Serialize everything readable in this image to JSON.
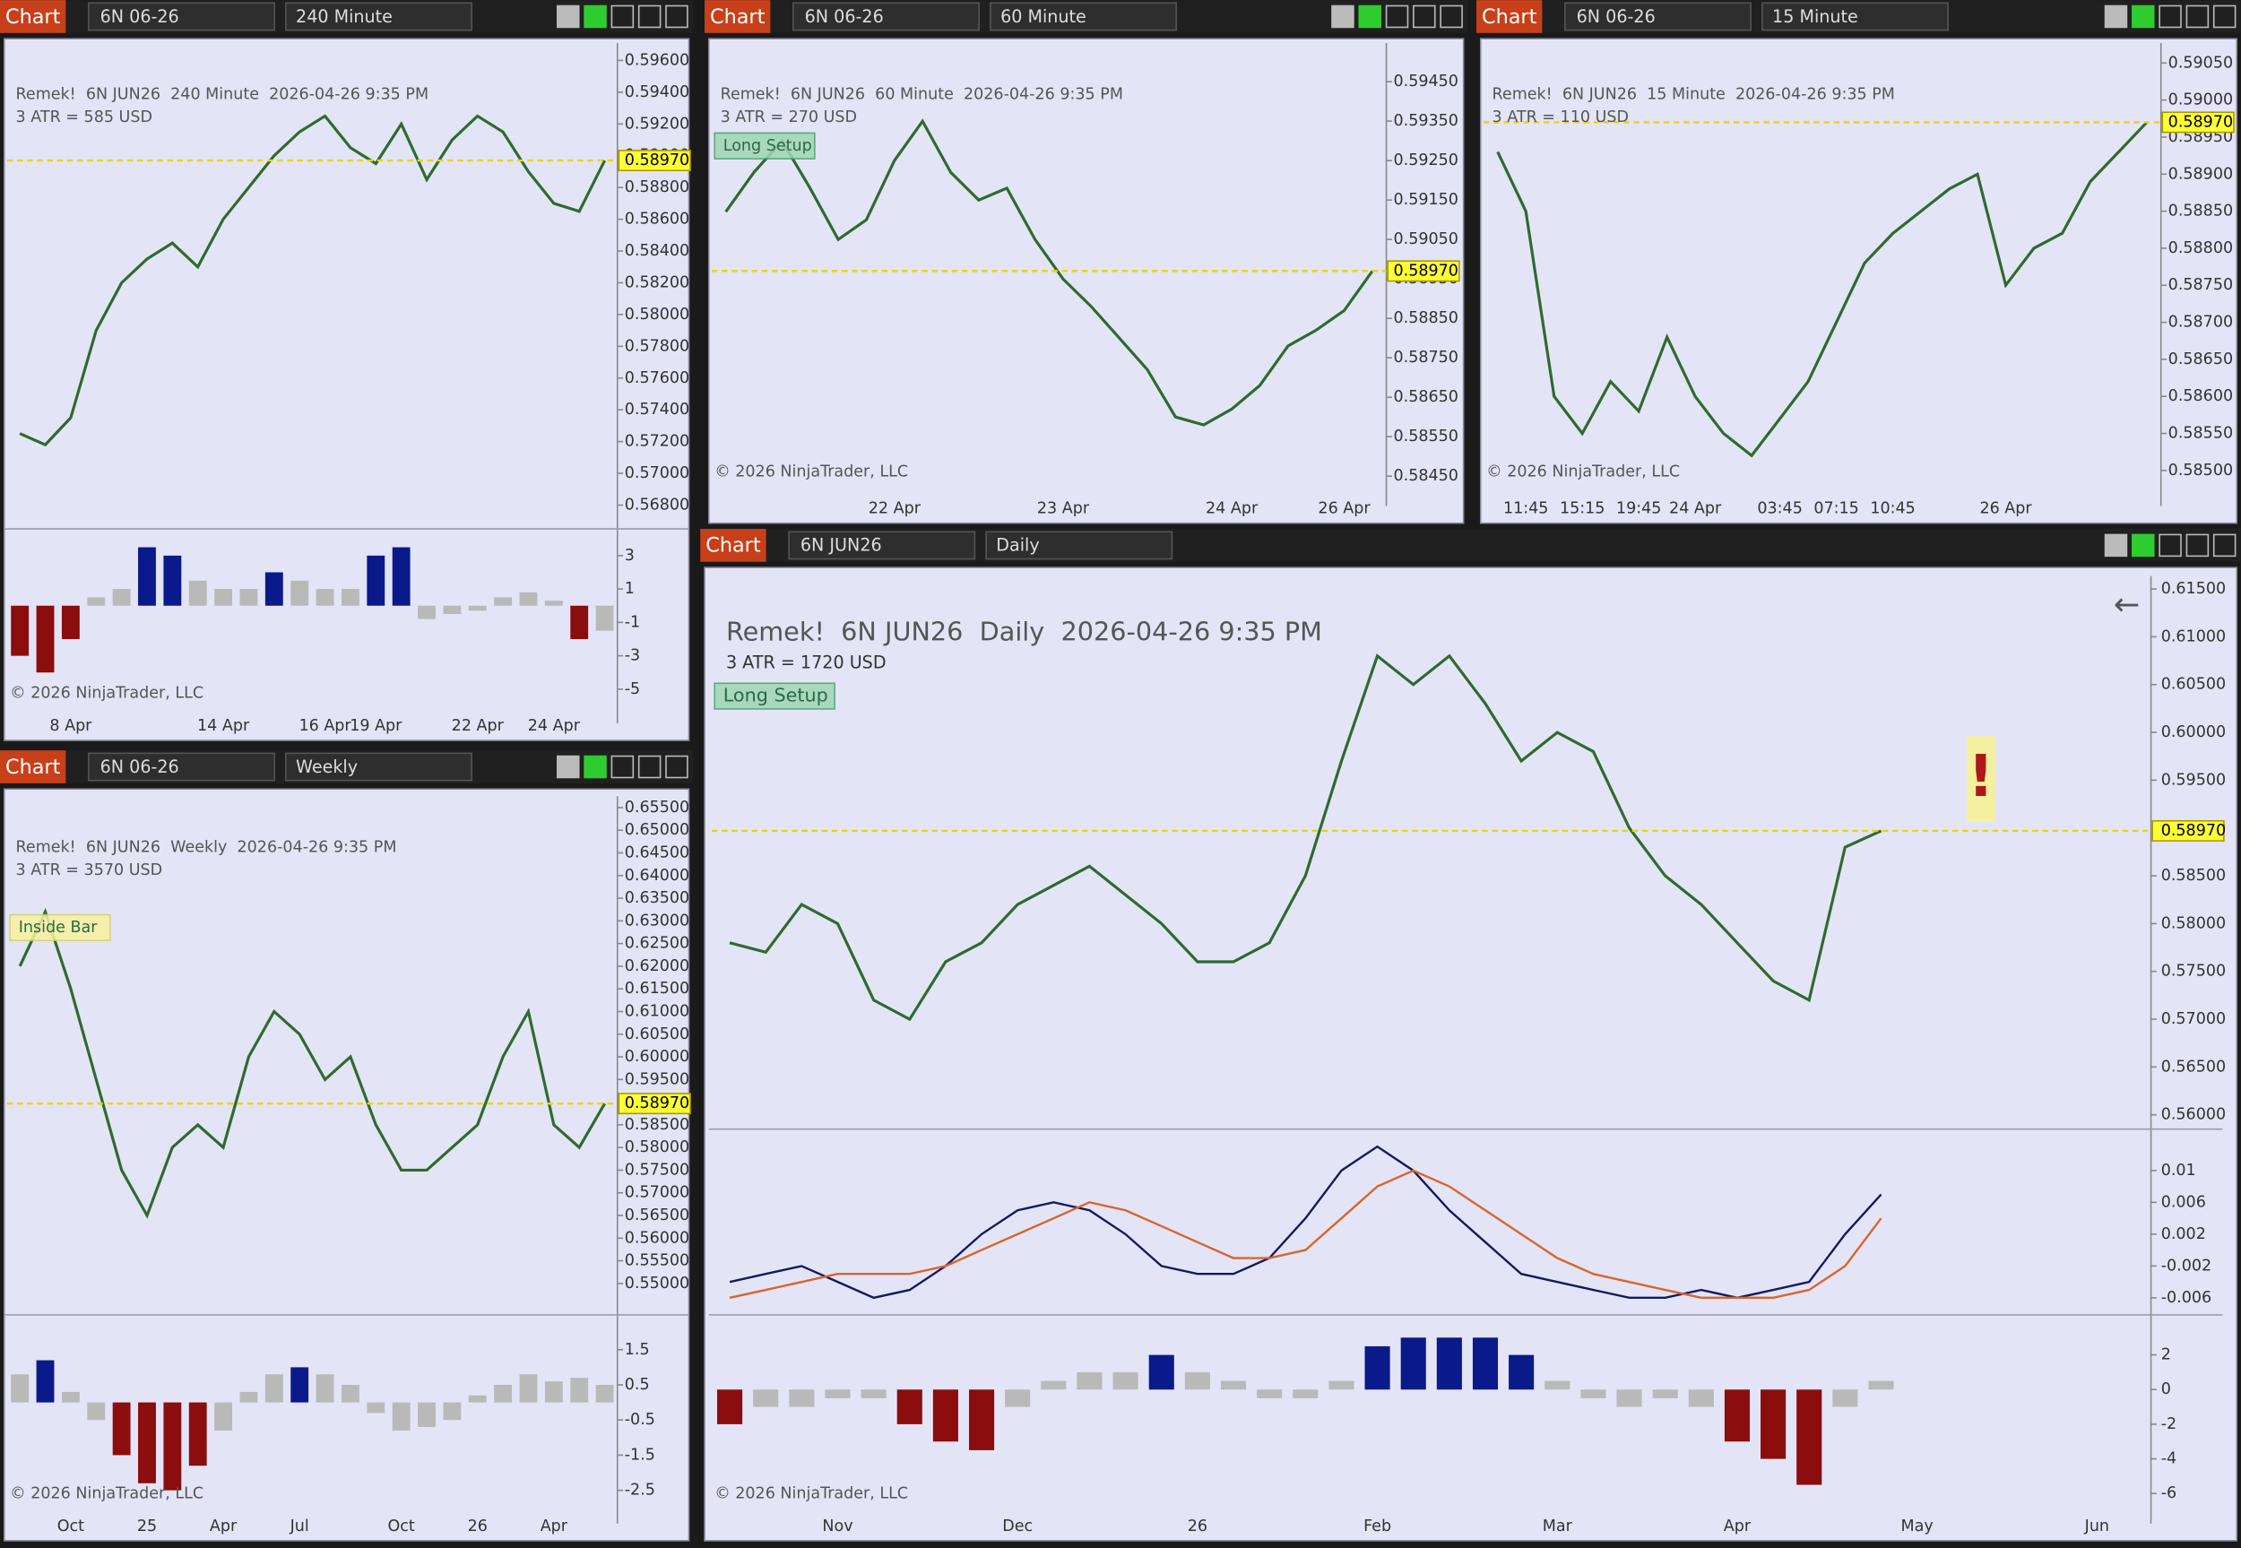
{
  "chart_data": [
    {
      "type": "line",
      "tab": "Chart",
      "instrument": "6N 06-26",
      "interval": "240 Minute",
      "title": "Remek!  6N JUN26  240 Minute  2026-04-26 9:35 PM",
      "subtitle": "3 ATR = 585 USD",
      "copyright": "© 2026 NinjaTrader, LLC",
      "color": "#2e6b2e",
      "categories": [
        null,
        null,
        "8 Apr",
        null,
        null,
        null,
        null,
        null,
        "14 Apr",
        null,
        null,
        null,
        "16 Apr",
        null,
        "19 Apr",
        null,
        null,
        null,
        "22 Apr",
        null,
        null,
        "24 Apr",
        null,
        null
      ],
      "values": [
        0.5725,
        0.5718,
        0.5735,
        0.579,
        0.582,
        0.5835,
        0.5845,
        0.583,
        0.586,
        0.588,
        0.59,
        0.5915,
        0.5925,
        0.5905,
        0.5895,
        0.592,
        0.5885,
        0.591,
        0.5925,
        0.5915,
        0.589,
        0.587,
        0.5865,
        0.5897
      ],
      "last": {
        "value": 0.5897,
        "label": "0.58970"
      },
      "ylim": [
        0.5665,
        0.5971
      ],
      "yticks": [
        {
          "value": 0.596,
          "label": "0.59600"
        },
        {
          "value": 0.594,
          "label": "0.59400"
        },
        {
          "value": 0.592,
          "label": "0.59200"
        },
        {
          "value": 0.59,
          "label": "0.59000"
        },
        {
          "value": 0.588,
          "label": "0.58800"
        },
        {
          "value": 0.586,
          "label": "0.58600"
        },
        {
          "value": 0.584,
          "label": "0.58400"
        },
        {
          "value": 0.582,
          "label": "0.58200"
        },
        {
          "value": 0.58,
          "label": "0.58000"
        },
        {
          "value": 0.578,
          "label": "0.57800"
        },
        {
          "value": 0.576,
          "label": "0.57600"
        },
        {
          "value": 0.574,
          "label": "0.57400"
        },
        {
          "value": 0.572,
          "label": "0.57200"
        },
        {
          "value": 0.57,
          "label": "0.57000"
        },
        {
          "value": 0.568,
          "label": "0.56800"
        }
      ],
      "oscillators": [
        {
          "type": "bar",
          "ylim": [
            -6.1,
            4.6
          ],
          "yticks": [
            3,
            1,
            -1,
            -3,
            -5
          ],
          "threshold": 2,
          "colors": {
            "up": "#0b1a8a",
            "down": "#8b0d0d",
            "neutral": "#b9b9b9"
          },
          "values": [
            -3,
            -4,
            -2,
            0.5,
            1,
            3.5,
            3,
            1.5,
            1,
            1,
            2,
            1.5,
            1,
            1,
            3,
            3.5,
            -0.8,
            -0.5,
            -0.3,
            0.5,
            0.8,
            0.3,
            -2,
            -1.5
          ]
        }
      ]
    },
    {
      "type": "line",
      "tab": "Chart",
      "instrument": "6N 06-26",
      "interval": "60 Minute",
      "title": "Remek!  6N JUN26  60 Minute  2026-04-26 9:35 PM",
      "subtitle": "3 ATR = 270 USD",
      "annotations": [
        "Long Setup"
      ],
      "copyright": "© 2026 NinjaTrader, LLC",
      "color": "#2e6b2e",
      "categories": [
        null,
        null,
        null,
        null,
        null,
        null,
        "22 Apr",
        null,
        null,
        null,
        null,
        null,
        "23 Apr",
        null,
        null,
        null,
        null,
        null,
        "24 Apr",
        null,
        null,
        null,
        "26 Apr",
        null
      ],
      "values": [
        0.5912,
        0.5922,
        0.593,
        0.5918,
        0.5905,
        0.591,
        0.5925,
        0.5935,
        0.5922,
        0.5915,
        0.5918,
        0.5905,
        0.5895,
        0.5888,
        0.588,
        0.5872,
        0.586,
        0.5858,
        0.5862,
        0.5868,
        0.5878,
        0.5882,
        0.5887,
        0.5897
      ],
      "last": {
        "value": 0.5897,
        "label": "0.58970"
      },
      "ylim": [
        0.58425,
        0.59548
      ],
      "yticks": [
        {
          "value": 0.5945,
          "label": "0.59450"
        },
        {
          "value": 0.5935,
          "label": "0.59350"
        },
        {
          "value": 0.5925,
          "label": "0.59250"
        },
        {
          "value": 0.5915,
          "label": "0.59150"
        },
        {
          "value": 0.5905,
          "label": "0.59050"
        },
        {
          "value": 0.5895,
          "label": "0.58950"
        },
        {
          "value": 0.5885,
          "label": "0.58850"
        },
        {
          "value": 0.5875,
          "label": "0.58750"
        },
        {
          "value": 0.5865,
          "label": "0.58650"
        },
        {
          "value": 0.5855,
          "label": "0.58550"
        },
        {
          "value": 0.5845,
          "label": "0.58450"
        }
      ]
    },
    {
      "type": "line",
      "tab": "Chart",
      "instrument": "6N 06-26",
      "interval": "15 Minute",
      "title": "Remek!  6N JUN26  15 Minute  2026-04-26 9:35 PM",
      "subtitle": "3 ATR = 110 USD",
      "copyright": "© 2026 NinjaTrader, LLC",
      "color": "#2e6b2e",
      "categories": [
        null,
        "11:45",
        null,
        "15:15",
        null,
        "19:45",
        null,
        "24 Apr",
        null,
        null,
        "03:45",
        null,
        "07:15",
        null,
        "10:45",
        null,
        null,
        null,
        "26 Apr",
        null,
        null,
        null,
        null,
        null
      ],
      "values": [
        0.5893,
        0.5885,
        0.586,
        0.5855,
        0.5862,
        0.5858,
        0.5868,
        0.586,
        0.5855,
        0.5852,
        0.5857,
        0.5862,
        0.587,
        0.5878,
        0.5882,
        0.5885,
        0.5888,
        0.589,
        0.5875,
        0.588,
        0.5882,
        0.5889,
        0.5893,
        0.5897
      ],
      "last": {
        "value": 0.5897,
        "label": "0.58970"
      },
      "ylim": [
        0.58479,
        0.59077
      ],
      "yticks": [
        {
          "value": 0.5905,
          "label": "0.59050"
        },
        {
          "value": 0.59,
          "label": "0.59000"
        },
        {
          "value": 0.5895,
          "label": "0.58950"
        },
        {
          "value": 0.589,
          "label": "0.58900"
        },
        {
          "value": 0.5885,
          "label": "0.58850"
        },
        {
          "value": 0.588,
          "label": "0.58800"
        },
        {
          "value": 0.5875,
          "label": "0.58750"
        },
        {
          "value": 0.587,
          "label": "0.58700"
        },
        {
          "value": 0.5865,
          "label": "0.58650"
        },
        {
          "value": 0.586,
          "label": "0.58600"
        },
        {
          "value": 0.5855,
          "label": "0.58550"
        },
        {
          "value": 0.585,
          "label": "0.58500"
        }
      ]
    },
    {
      "type": "line",
      "tab": "Chart",
      "instrument": "6N 06-26",
      "interval": "Weekly",
      "title": "Remek!  6N JUN26  Weekly  2026-04-26 9:35 PM",
      "subtitle": "3 ATR = 3570 USD",
      "annotations": [
        "Inside Bar"
      ],
      "copyright": "© 2026 NinjaTrader, LLC",
      "color": "#2e6b2e",
      "categories": [
        null,
        null,
        "Oct",
        null,
        null,
        "25",
        null,
        null,
        "Apr",
        null,
        null,
        "Jul",
        null,
        null,
        null,
        "Oct",
        null,
        null,
        "26",
        null,
        null,
        "Apr",
        null,
        null
      ],
      "values": [
        0.62,
        0.632,
        0.615,
        0.595,
        0.575,
        0.565,
        0.58,
        0.585,
        0.58,
        0.6,
        0.61,
        0.605,
        0.595,
        0.6,
        0.585,
        0.575,
        0.575,
        0.58,
        0.585,
        0.6,
        0.61,
        0.585,
        0.58,
        0.5897
      ],
      "last": {
        "value": 0.5897,
        "label": "0.58970"
      },
      "ylim": [
        0.54306,
        0.65752
      ],
      "yticks": [
        {
          "value": 0.655,
          "label": "0.65500"
        },
        {
          "value": 0.65,
          "label": "0.65000"
        },
        {
          "value": 0.645,
          "label": "0.64500"
        },
        {
          "value": 0.64,
          "label": "0.64000"
        },
        {
          "value": 0.635,
          "label": "0.63500"
        },
        {
          "value": 0.63,
          "label": "0.63000"
        },
        {
          "value": 0.625,
          "label": "0.62500"
        },
        {
          "value": 0.62,
          "label": "0.62000"
        },
        {
          "value": 0.615,
          "label": "0.61500"
        },
        {
          "value": 0.61,
          "label": "0.61000"
        },
        {
          "value": 0.605,
          "label": "0.60500"
        },
        {
          "value": 0.6,
          "label": "0.60000"
        },
        {
          "value": 0.595,
          "label": "0.59500"
        },
        {
          "value": 0.59,
          "label": "0.59000"
        },
        {
          "value": 0.585,
          "label": "0.58500"
        },
        {
          "value": 0.58,
          "label": "0.58000"
        },
        {
          "value": 0.575,
          "label": "0.57500"
        },
        {
          "value": 0.57,
          "label": "0.57000"
        },
        {
          "value": 0.565,
          "label": "0.56500"
        },
        {
          "value": 0.56,
          "label": "0.56000"
        },
        {
          "value": 0.555,
          "label": "0.55500"
        },
        {
          "value": 0.55,
          "label": "0.55000"
        }
      ],
      "oscillators": [
        {
          "type": "bar",
          "ylim": [
            -3.0,
            2.49
          ],
          "yticks": [
            1.5,
            0.5,
            -0.5,
            -1.5,
            -2.5
          ],
          "threshold": 1,
          "colors": {
            "up": "#0b1a8a",
            "down": "#8b0d0d",
            "neutral": "#b9b9b9"
          },
          "values": [
            0.8,
            1.2,
            0.3,
            -0.5,
            -1.5,
            -2.3,
            -2.5,
            -1.8,
            -0.8,
            0.3,
            0.8,
            1,
            0.8,
            0.5,
            -0.3,
            -0.8,
            -0.7,
            -0.5,
            0.2,
            0.5,
            0.8,
            0.6,
            0.7,
            0.5
          ]
        }
      ]
    },
    {
      "type": "line",
      "tab": "Chart",
      "instrument": "6N JUN26",
      "interval": "Daily",
      "title": "Remek!  6N JUN26  Daily  2026-04-26 9:35 PM",
      "subtitle": "3 ATR = 1720 USD",
      "annotations": [
        "Long Setup"
      ],
      "alert": "!",
      "copyright": "© 2026 NinjaTrader, LLC",
      "color": "#2e6b2e",
      "categories": [
        null,
        null,
        null,
        "Nov",
        null,
        null,
        null,
        null,
        "Dec",
        null,
        null,
        null,
        null,
        "26",
        null,
        null,
        null,
        null,
        "Feb",
        null,
        null,
        null,
        null,
        "Mar",
        null,
        null,
        null,
        null,
        "Apr",
        null,
        null,
        null,
        null,
        "May",
        null,
        null,
        null,
        null,
        "Jun",
        null
      ],
      "values": [
        0.578,
        0.577,
        0.582,
        0.58,
        0.572,
        0.57,
        0.576,
        0.578,
        0.582,
        0.584,
        0.586,
        0.583,
        0.58,
        0.576,
        0.576,
        0.578,
        0.585,
        0.597,
        0.608,
        0.605,
        0.608,
        0.603,
        0.597,
        0.6,
        0.598,
        0.59,
        0.585,
        0.582,
        0.578,
        0.574,
        0.572,
        0.588,
        0.5897,
        null,
        null,
        null,
        null,
        null,
        null,
        null
      ],
      "last": {
        "value": 0.5897,
        "label": "0.58970"
      },
      "ylim": [
        0.5585,
        0.61635
      ],
      "yticks": [
        {
          "value": 0.615,
          "label": "0.61500"
        },
        {
          "value": 0.61,
          "label": "0.61000"
        },
        {
          "value": 0.605,
          "label": "0.60500"
        },
        {
          "value": 0.6,
          "label": "0.60000"
        },
        {
          "value": 0.595,
          "label": "0.59500"
        },
        {
          "value": 0.59,
          "label": "0.59000"
        },
        {
          "value": 0.585,
          "label": "0.58500"
        },
        {
          "value": 0.58,
          "label": "0.58000"
        },
        {
          "value": 0.575,
          "label": "0.57500"
        },
        {
          "value": 0.57,
          "label": "0.57000"
        },
        {
          "value": 0.565,
          "label": "0.56500"
        },
        {
          "value": 0.56,
          "label": "0.56000"
        }
      ],
      "oscillators": [
        {
          "type": "line",
          "ylim": [
            -0.00815,
            0.0152
          ],
          "yticks": [
            0.01,
            0.006,
            0.002,
            -0.002,
            -0.006
          ],
          "series": [
            {
              "color": "#141a5c",
              "values": [
                -0.004,
                -0.003,
                -0.002,
                -0.004,
                -0.006,
                -0.005,
                -0.002,
                0.002,
                0.005,
                0.006,
                0.005,
                0.002,
                -0.002,
                -0.003,
                -0.003,
                -0.001,
                0.004,
                0.01,
                0.013,
                0.01,
                0.005,
                0.001,
                -0.003,
                -0.004,
                -0.005,
                -0.006,
                -0.006,
                -0.005,
                -0.006,
                -0.005,
                -0.004,
                0.002,
                0.007,
                null,
                null,
                null,
                null,
                null,
                null,
                null
              ]
            },
            {
              "color": "#d9652a",
              "values": [
                -0.006,
                -0.005,
                -0.004,
                -0.003,
                -0.003,
                -0.003,
                -0.002,
                0,
                0.002,
                0.004,
                0.006,
                0.005,
                0.003,
                0.001,
                -0.001,
                -0.001,
                0,
                0.004,
                0.008,
                0.01,
                0.008,
                0.005,
                0.002,
                -0.001,
                -0.003,
                -0.004,
                -0.005,
                -0.006,
                -0.006,
                -0.006,
                -0.005,
                -0.002,
                0.004,
                null,
                null,
                null,
                null,
                null,
                null,
                null
              ]
            }
          ]
        },
        {
          "type": "bar",
          "ylim": [
            -6.83,
            4.31
          ],
          "yticks": [
            2,
            0,
            -2,
            -4,
            -6
          ],
          "threshold": 2,
          "colors": {
            "up": "#0b1a8a",
            "down": "#8b0d0d",
            "neutral": "#b9b9b9"
          },
          "values": [
            -2,
            -1,
            -1,
            -0.5,
            -0.5,
            -2,
            -3,
            -3.5,
            -1,
            0.5,
            1,
            1,
            2,
            1,
            0.5,
            -0.5,
            -0.5,
            0.5,
            2.5,
            3,
            3,
            3,
            2,
            0.5,
            -0.5,
            -1,
            -0.5,
            -1,
            -3,
            -4,
            -5.5,
            -1,
            0.5,
            null,
            null,
            null,
            null,
            null,
            null,
            null
          ]
        }
      ]
    }
  ]
}
